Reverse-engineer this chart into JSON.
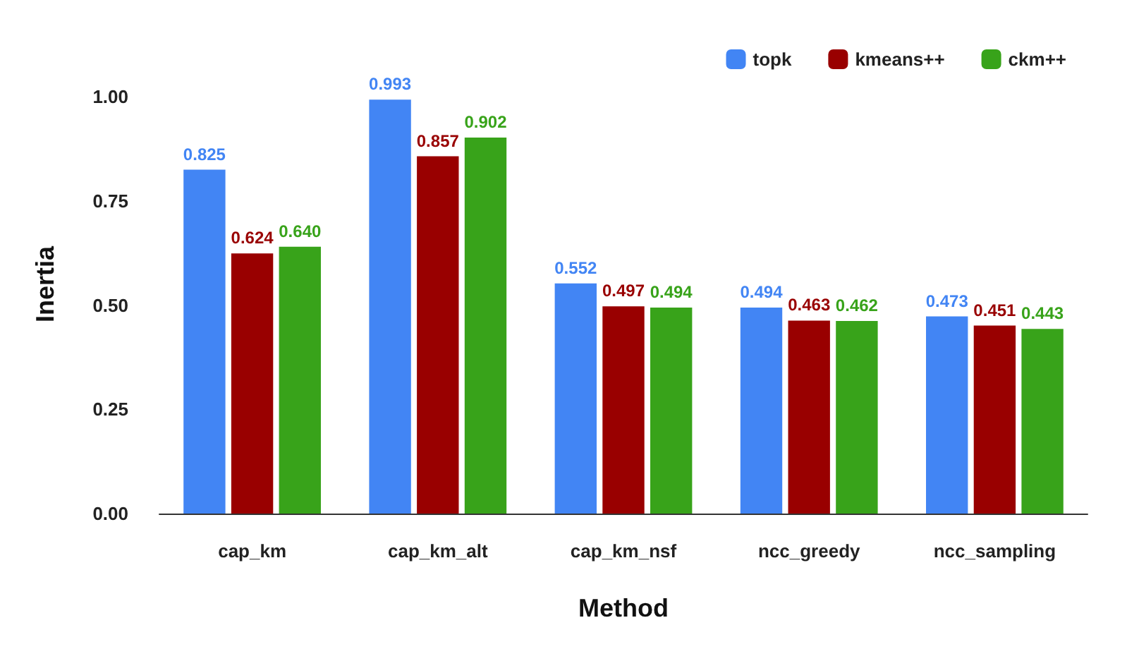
{
  "chart_data": {
    "type": "bar",
    "xlabel": "Method",
    "ylabel": "Inertia",
    "categories": [
      "cap_km",
      "cap_km_alt",
      "cap_km_nsf",
      "ncc_greedy",
      "ncc_sampling"
    ],
    "series": [
      {
        "name": "topk",
        "color": "#4285f4",
        "values": [
          0.825,
          0.993,
          0.552,
          0.494,
          0.473
        ],
        "value_labels": [
          "0.825",
          "0.993",
          "0.552",
          "0.494",
          "0.473"
        ]
      },
      {
        "name": "kmeans++",
        "color": "#990000",
        "values": [
          0.624,
          0.857,
          0.497,
          0.463,
          0.451
        ],
        "value_labels": [
          "0.624",
          "0.857",
          "0.497",
          "0.463",
          "0.451"
        ]
      },
      {
        "name": "ckm++",
        "color": "#38a31a",
        "values": [
          0.64,
          0.902,
          0.494,
          0.462,
          0.443
        ],
        "value_labels": [
          "0.640",
          "0.902",
          "0.494",
          "0.462",
          "0.443"
        ]
      }
    ],
    "ylim": [
      0,
      1.1
    ],
    "yticks": [
      {
        "value": 0,
        "label": "0.00"
      },
      {
        "value": 0.25,
        "label": "0.25"
      },
      {
        "value": 0.5,
        "label": "0.50"
      },
      {
        "value": 0.75,
        "label": "0.75"
      },
      {
        "value": 1,
        "label": "1.00"
      }
    ],
    "grid": false,
    "legend": "top right"
  }
}
